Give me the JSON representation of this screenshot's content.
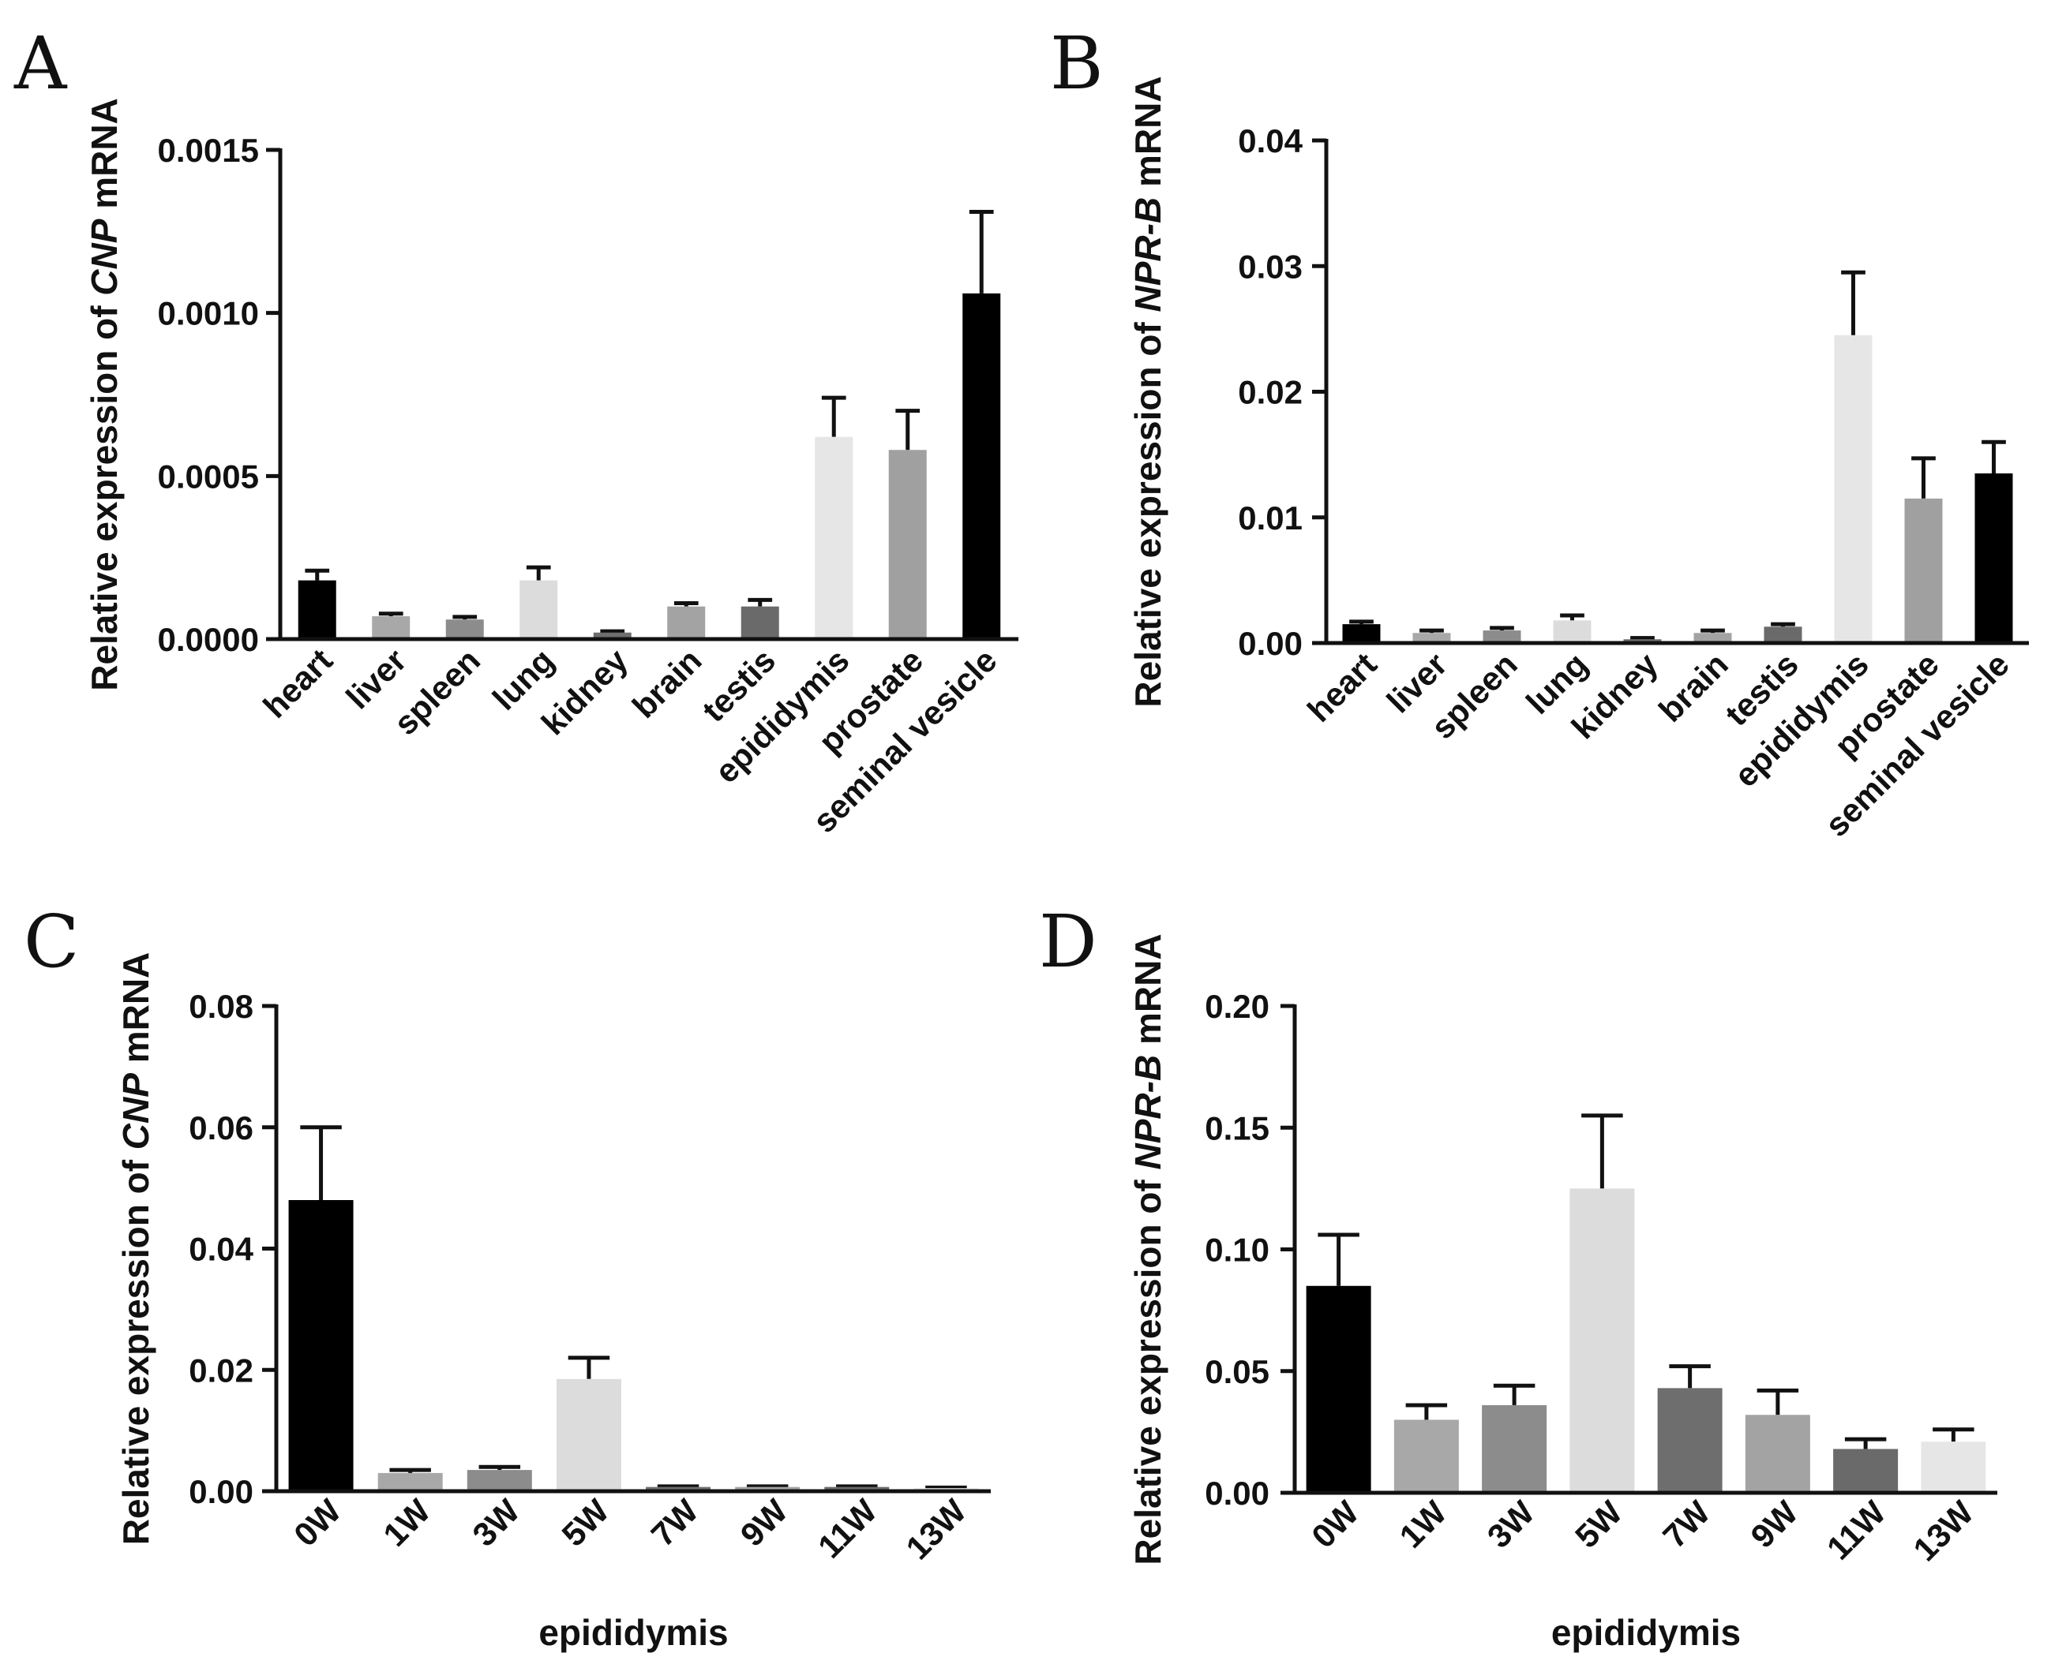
{
  "chart_data": [
    {
      "panel": "A",
      "type": "bar",
      "title": "",
      "ylabel_prefix": "Relative expression of",
      "ylabel_gene": "CNP",
      "ylabel_suffix": "mRNA",
      "xlabel": "",
      "categories": [
        "heart",
        "liver",
        "spleen",
        "lung",
        "kidney",
        "brain",
        "testis",
        "epididymis",
        "prostate",
        "seminal vesicle"
      ],
      "values": [
        0.00018,
        7e-05,
        6e-05,
        0.00018,
        2e-05,
        0.0001,
        0.0001,
        0.00062,
        0.00058,
        0.00106
      ],
      "errors": [
        3e-05,
        8e-06,
        8e-06,
        4e-05,
        4e-06,
        1e-05,
        2e-05,
        0.00012,
        0.00012,
        0.00025
      ],
      "colors": [
        "#000000",
        "#a8a8a8",
        "#8c8c8c",
        "#dcdcdc",
        "#6e6e6e",
        "#a3a3a3",
        "#6a6a6a",
        "#e6e6e6",
        "#a0a0a0",
        "#000000"
      ],
      "yticks": [
        "0.0000",
        "0.0005",
        "0.0010",
        "0.0015"
      ],
      "ylim": [
        0,
        0.0015
      ]
    },
    {
      "panel": "B",
      "type": "bar",
      "title": "",
      "ylabel_prefix": "Relative expression of",
      "ylabel_gene": "NPR-B",
      "ylabel_suffix": "mRNA",
      "xlabel": "",
      "categories": [
        "heart",
        "liver",
        "spleen",
        "lung",
        "kidney",
        "brain",
        "testis",
        "epididymis",
        "prostate",
        "seminal vesicle"
      ],
      "values": [
        0.0015,
        0.0008,
        0.001,
        0.0018,
        0.0003,
        0.0008,
        0.0013,
        0.0245,
        0.0115,
        0.0135
      ],
      "errors": [
        0.0002,
        0.0002,
        0.0002,
        0.0004,
        0.0001,
        0.0002,
        0.0002,
        0.005,
        0.0032,
        0.0025
      ],
      "colors": [
        "#000000",
        "#a8a8a8",
        "#8c8c8c",
        "#dcdcdc",
        "#6e6e6e",
        "#a3a3a3",
        "#6a6a6a",
        "#e6e6e6",
        "#a0a0a0",
        "#000000"
      ],
      "yticks": [
        "0.00",
        "0.01",
        "0.02",
        "0.03",
        "0.04"
      ],
      "ylim": [
        0,
        0.04
      ]
    },
    {
      "panel": "C",
      "type": "bar",
      "title": "",
      "ylabel_prefix": "Relative expression of",
      "ylabel_gene": "CNP",
      "ylabel_suffix": "mRNA",
      "xlabel": "epididymis",
      "categories": [
        "0W",
        "1W",
        "3W",
        "5W",
        "7W",
        "9W",
        "11W",
        "13W"
      ],
      "values": [
        0.048,
        0.003,
        0.0035,
        0.0185,
        0.0007,
        0.0007,
        0.0007,
        0.0005
      ],
      "errors": [
        0.012,
        0.0005,
        0.0005,
        0.0035,
        0.0001,
        0.0001,
        0.0001,
        0.0001
      ],
      "colors": [
        "#000000",
        "#a8a8a8",
        "#8c8c8c",
        "#dcdcdc",
        "#6e6e6e",
        "#a3a3a3",
        "#6a6a6a",
        "#e6e6e6"
      ],
      "yticks": [
        "0.00",
        "0.02",
        "0.04",
        "0.06",
        "0.08"
      ],
      "ylim": [
        0,
        0.08
      ]
    },
    {
      "panel": "D",
      "type": "bar",
      "title": "",
      "ylabel_prefix": "Relative expression of",
      "ylabel_gene": "NPR-B",
      "ylabel_suffix": "mRNA",
      "xlabel": "epididymis",
      "categories": [
        "0W",
        "1W",
        "3W",
        "5W",
        "7W",
        "9W",
        "11W",
        "13W"
      ],
      "values": [
        0.085,
        0.03,
        0.036,
        0.125,
        0.043,
        0.032,
        0.018,
        0.021
      ],
      "errors": [
        0.021,
        0.006,
        0.008,
        0.03,
        0.009,
        0.01,
        0.004,
        0.005
      ],
      "colors": [
        "#000000",
        "#a8a8a8",
        "#8c8c8c",
        "#dcdcdc",
        "#6e6e6e",
        "#a3a3a3",
        "#6a6a6a",
        "#e6e6e6"
      ],
      "yticks": [
        "0.00",
        "0.05",
        "0.10",
        "0.15",
        "0.20"
      ],
      "ylim": [
        0,
        0.2
      ]
    }
  ]
}
